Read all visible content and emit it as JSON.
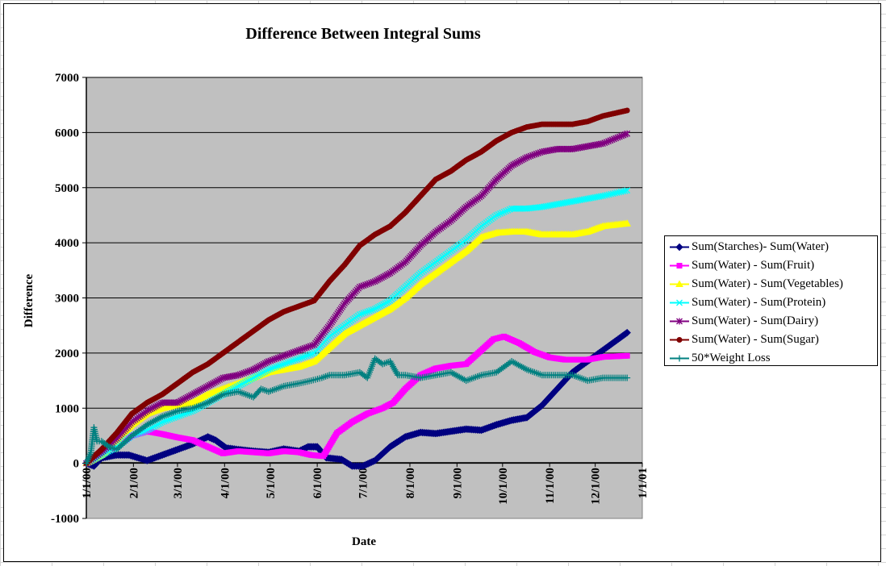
{
  "chart_data": {
    "type": "line",
    "title": "Difference Between Integral Sums",
    "xlabel": "Date",
    "ylabel": "Difference",
    "ylim": [
      -1000,
      7000
    ],
    "y_ticks": [
      "7000",
      "6000",
      "5000",
      "4000",
      "3000",
      "2000",
      "1000",
      "0",
      "-1000"
    ],
    "x_ticks": [
      "1/1/00",
      "2/1/00",
      "3/1/00",
      "4/1/00",
      "5/1/00",
      "6/1/00",
      "7/1/00",
      "8/1/00",
      "9/1/00",
      "10/1/00",
      "11/1/00",
      "12/1/00",
      "1/1/01"
    ],
    "x_unit": "days since 1/1/00",
    "xlim": [
      0,
      366
    ],
    "grid": "horizontal major gridlines",
    "plot_background": "#c0c0c0",
    "legend_position": "right",
    "series": [
      {
        "name": "Sum(Starches)- Sum(Water)",
        "color": "#000080",
        "marker": "diamond",
        "points": [
          [
            0,
            0
          ],
          [
            5,
            -50
          ],
          [
            10,
            100
          ],
          [
            20,
            150
          ],
          [
            28,
            150
          ],
          [
            40,
            50
          ],
          [
            50,
            150
          ],
          [
            60,
            250
          ],
          [
            70,
            350
          ],
          [
            80,
            480
          ],
          [
            85,
            420
          ],
          [
            92,
            280
          ],
          [
            100,
            250
          ],
          [
            110,
            220
          ],
          [
            120,
            200
          ],
          [
            130,
            260
          ],
          [
            140,
            220
          ],
          [
            146,
            300
          ],
          [
            152,
            300
          ],
          [
            158,
            100
          ],
          [
            168,
            70
          ],
          [
            175,
            -50
          ],
          [
            182,
            -50
          ],
          [
            190,
            50
          ],
          [
            200,
            300
          ],
          [
            210,
            480
          ],
          [
            220,
            560
          ],
          [
            230,
            540
          ],
          [
            240,
            580
          ],
          [
            250,
            620
          ],
          [
            260,
            600
          ],
          [
            270,
            700
          ],
          [
            280,
            780
          ],
          [
            290,
            830
          ],
          [
            300,
            1050
          ],
          [
            310,
            1350
          ],
          [
            320,
            1650
          ],
          [
            330,
            1850
          ],
          [
            340,
            2050
          ],
          [
            350,
            2250
          ],
          [
            356,
            2370
          ]
        ]
      },
      {
        "name": "Sum(Water) - Sum(Fruit)",
        "color": "#ff00ff",
        "marker": "square",
        "points": [
          [
            0,
            0
          ],
          [
            5,
            80
          ],
          [
            10,
            200
          ],
          [
            20,
            300
          ],
          [
            30,
            500
          ],
          [
            40,
            580
          ],
          [
            50,
            530
          ],
          [
            60,
            470
          ],
          [
            70,
            420
          ],
          [
            80,
            300
          ],
          [
            90,
            180
          ],
          [
            100,
            220
          ],
          [
            110,
            200
          ],
          [
            120,
            180
          ],
          [
            130,
            220
          ],
          [
            140,
            200
          ],
          [
            148,
            150
          ],
          [
            156,
            130
          ],
          [
            165,
            550
          ],
          [
            175,
            750
          ],
          [
            185,
            900
          ],
          [
            195,
            1000
          ],
          [
            202,
            1100
          ],
          [
            210,
            1350
          ],
          [
            220,
            1600
          ],
          [
            230,
            1720
          ],
          [
            240,
            1770
          ],
          [
            250,
            1800
          ],
          [
            260,
            2050
          ],
          [
            268,
            2250
          ],
          [
            275,
            2300
          ],
          [
            285,
            2180
          ],
          [
            295,
            2020
          ],
          [
            305,
            1920
          ],
          [
            315,
            1880
          ],
          [
            330,
            1880
          ],
          [
            340,
            1930
          ],
          [
            356,
            1950
          ]
        ]
      },
      {
        "name": "Sum(Water) - Sum(Vegetables)",
        "color": "#ffff00",
        "marker": "triangle",
        "points": [
          [
            0,
            0
          ],
          [
            10,
            150
          ],
          [
            20,
            400
          ],
          [
            30,
            700
          ],
          [
            40,
            900
          ],
          [
            50,
            1000
          ],
          [
            60,
            1050
          ],
          [
            70,
            1100
          ],
          [
            80,
            1250
          ],
          [
            90,
            1350
          ],
          [
            100,
            1450
          ],
          [
            110,
            1550
          ],
          [
            120,
            1650
          ],
          [
            130,
            1700
          ],
          [
            140,
            1750
          ],
          [
            150,
            1850
          ],
          [
            160,
            2100
          ],
          [
            170,
            2350
          ],
          [
            180,
            2500
          ],
          [
            190,
            2650
          ],
          [
            200,
            2800
          ],
          [
            210,
            3000
          ],
          [
            220,
            3250
          ],
          [
            230,
            3450
          ],
          [
            240,
            3650
          ],
          [
            250,
            3850
          ],
          [
            260,
            4100
          ],
          [
            270,
            4180
          ],
          [
            280,
            4200
          ],
          [
            290,
            4200
          ],
          [
            300,
            4150
          ],
          [
            310,
            4150
          ],
          [
            320,
            4150
          ],
          [
            330,
            4200
          ],
          [
            340,
            4300
          ],
          [
            356,
            4350
          ]
        ]
      },
      {
        "name": "Sum(Water) - Sum(Protein)",
        "color": "#00ffff",
        "marker": "x",
        "points": [
          [
            0,
            0
          ],
          [
            10,
            150
          ],
          [
            20,
            300
          ],
          [
            30,
            500
          ],
          [
            40,
            600
          ],
          [
            50,
            750
          ],
          [
            60,
            850
          ],
          [
            70,
            950
          ],
          [
            80,
            1100
          ],
          [
            90,
            1250
          ],
          [
            100,
            1400
          ],
          [
            110,
            1550
          ],
          [
            120,
            1700
          ],
          [
            130,
            1800
          ],
          [
            140,
            1900
          ],
          [
            150,
            2000
          ],
          [
            160,
            2300
          ],
          [
            170,
            2500
          ],
          [
            180,
            2700
          ],
          [
            190,
            2800
          ],
          [
            200,
            2950
          ],
          [
            210,
            3200
          ],
          [
            220,
            3450
          ],
          [
            230,
            3650
          ],
          [
            240,
            3850
          ],
          [
            250,
            4050
          ],
          [
            260,
            4300
          ],
          [
            270,
            4500
          ],
          [
            280,
            4620
          ],
          [
            290,
            4620
          ],
          [
            300,
            4650
          ],
          [
            310,
            4700
          ],
          [
            320,
            4750
          ],
          [
            330,
            4800
          ],
          [
            340,
            4850
          ],
          [
            356,
            4950
          ]
        ]
      },
      {
        "name": "Sum(Water) - Sum(Dairy)",
        "color": "#800080",
        "marker": "star",
        "points": [
          [
            0,
            0
          ],
          [
            10,
            200
          ],
          [
            20,
            450
          ],
          [
            30,
            750
          ],
          [
            40,
            950
          ],
          [
            50,
            1100
          ],
          [
            60,
            1100
          ],
          [
            70,
            1250
          ],
          [
            80,
            1400
          ],
          [
            90,
            1550
          ],
          [
            100,
            1600
          ],
          [
            110,
            1700
          ],
          [
            120,
            1850
          ],
          [
            130,
            1950
          ],
          [
            140,
            2050
          ],
          [
            150,
            2150
          ],
          [
            160,
            2500
          ],
          [
            170,
            2900
          ],
          [
            180,
            3200
          ],
          [
            190,
            3300
          ],
          [
            200,
            3450
          ],
          [
            210,
            3650
          ],
          [
            220,
            3950
          ],
          [
            230,
            4200
          ],
          [
            240,
            4400
          ],
          [
            250,
            4650
          ],
          [
            260,
            4850
          ],
          [
            270,
            5150
          ],
          [
            280,
            5400
          ],
          [
            290,
            5550
          ],
          [
            300,
            5650
          ],
          [
            310,
            5700
          ],
          [
            320,
            5700
          ],
          [
            330,
            5750
          ],
          [
            340,
            5800
          ],
          [
            356,
            5980
          ]
        ]
      },
      {
        "name": "Sum(Water) - Sum(Sugar)",
        "color": "#800000",
        "marker": "circle",
        "points": [
          [
            0,
            0
          ],
          [
            10,
            250
          ],
          [
            20,
            550
          ],
          [
            30,
            900
          ],
          [
            40,
            1100
          ],
          [
            50,
            1250
          ],
          [
            60,
            1450
          ],
          [
            70,
            1650
          ],
          [
            80,
            1800
          ],
          [
            90,
            2000
          ],
          [
            100,
            2200
          ],
          [
            110,
            2400
          ],
          [
            120,
            2600
          ],
          [
            130,
            2750
          ],
          [
            140,
            2850
          ],
          [
            150,
            2950
          ],
          [
            160,
            3300
          ],
          [
            170,
            3600
          ],
          [
            180,
            3950
          ],
          [
            190,
            4150
          ],
          [
            200,
            4300
          ],
          [
            210,
            4550
          ],
          [
            220,
            4850
          ],
          [
            230,
            5150
          ],
          [
            240,
            5300
          ],
          [
            250,
            5500
          ],
          [
            260,
            5650
          ],
          [
            270,
            5850
          ],
          [
            280,
            6000
          ],
          [
            290,
            6100
          ],
          [
            300,
            6150
          ],
          [
            310,
            6150
          ],
          [
            320,
            6150
          ],
          [
            330,
            6200
          ],
          [
            340,
            6300
          ],
          [
            356,
            6400
          ]
        ]
      },
      {
        "name": "50*Weight Loss",
        "color": "#008080",
        "marker": "plus",
        "points": [
          [
            0,
            0
          ],
          [
            3,
            200
          ],
          [
            5,
            650
          ],
          [
            7,
            400
          ],
          [
            10,
            400
          ],
          [
            15,
            300
          ],
          [
            20,
            250
          ],
          [
            30,
            500
          ],
          [
            40,
            700
          ],
          [
            50,
            850
          ],
          [
            60,
            950
          ],
          [
            70,
            1000
          ],
          [
            80,
            1100
          ],
          [
            90,
            1250
          ],
          [
            100,
            1300
          ],
          [
            105,
            1250
          ],
          [
            110,
            1200
          ],
          [
            115,
            1350
          ],
          [
            120,
            1300
          ],
          [
            130,
            1400
          ],
          [
            140,
            1450
          ],
          [
            148,
            1500
          ],
          [
            155,
            1550
          ],
          [
            160,
            1600
          ],
          [
            170,
            1600
          ],
          [
            180,
            1650
          ],
          [
            185,
            1550
          ],
          [
            190,
            1900
          ],
          [
            195,
            1800
          ],
          [
            200,
            1850
          ],
          [
            205,
            1600
          ],
          [
            210,
            1600
          ],
          [
            220,
            1550
          ],
          [
            230,
            1600
          ],
          [
            240,
            1650
          ],
          [
            250,
            1500
          ],
          [
            260,
            1600
          ],
          [
            270,
            1650
          ],
          [
            280,
            1850
          ],
          [
            290,
            1700
          ],
          [
            300,
            1600
          ],
          [
            310,
            1600
          ],
          [
            320,
            1600
          ],
          [
            330,
            1500
          ],
          [
            340,
            1550
          ],
          [
            356,
            1550
          ]
        ]
      }
    ]
  }
}
